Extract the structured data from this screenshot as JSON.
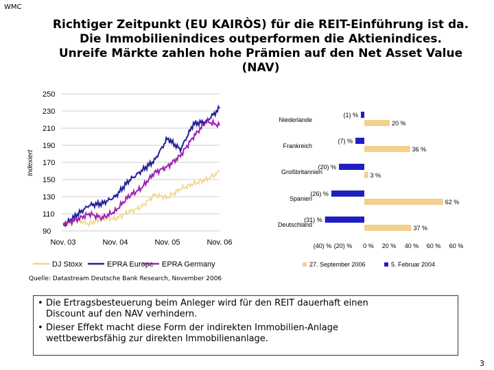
{
  "corner_label": "WMC",
  "title_lines": [
    "Richtiger Zeitpunkt (EU KAIRÒS) für die REIT-Einführung ist da.",
    "Die Immobilienindices outperformen die Aktienindices.",
    "Unreife Märkte zahlen hohe Prämien auf den Net Asset Value",
    "(NAV)"
  ],
  "source": "Quelle: Datastream Deutsche Bank Research, November 2006",
  "bullets": [
    [
      "Die Ertragsbesteuerung beim Anleger wird für den REIT dauerhaft einen",
      "Discount auf den NAV verhindern."
    ],
    [
      "Dieser Effekt macht diese Form der indirekten Immobilien-Anlage",
      "wettbewerbsfähig zur direkten Immobilienanlage."
    ]
  ],
  "page_number": "3",
  "colors": {
    "dj": "#f2d58a",
    "europe": "#1f1f9a",
    "germany": "#a020b0",
    "bar_sept": "#f5cf8c",
    "bar_feb": "#1f1fc0"
  },
  "chart_data": [
    {
      "type": "line",
      "ylabel": "Indexiert",
      "ylim": [
        90,
        250
      ],
      "yticks": [
        90,
        110,
        130,
        150,
        170,
        190,
        210,
        230,
        250
      ],
      "xticks": [
        "Nov. 03",
        "Nov. 04",
        "Nov. 05",
        "Nov. 06"
      ],
      "x": [
        0,
        0.25,
        0.5,
        0.75,
        1.0,
        1.25,
        1.5,
        1.75,
        2.0,
        2.25,
        2.5,
        2.75,
        3.0
      ],
      "series": [
        {
          "name": "DJ Stoxx",
          "values": [
            96,
            103,
            98,
            105,
            104,
            112,
            118,
            132,
            129,
            139,
            145,
            150,
            159
          ]
        },
        {
          "name": "EPRA Europe",
          "values": [
            96,
            108,
            120,
            122,
            130,
            148,
            160,
            172,
            198,
            185,
            215,
            218,
            233
          ]
        },
        {
          "name": "EPRA Germany",
          "values": [
            98,
            103,
            110,
            105,
            113,
            130,
            140,
            158,
            165,
            178,
            200,
            218,
            213
          ]
        }
      ]
    },
    {
      "type": "bar",
      "orientation": "horizontal",
      "categories": [
        "Niederlande",
        "Frankreich",
        "Großbritannien",
        "Spanien",
        "Deutschland"
      ],
      "series": [
        {
          "name": "27. September 2006",
          "values": [
            20,
            36,
            3,
            62,
            37
          ],
          "labels": [
            "20 %",
            "36 %",
            "3 %",
            "62 %",
            "37 %"
          ]
        },
        {
          "name": "5. Februar 2004",
          "values": [
            -1,
            -7,
            -20,
            -26,
            -31
          ],
          "labels": [
            "(1) %",
            "(7) %",
            "(20) %",
            "(26) %",
            "(31) %"
          ]
        }
      ],
      "xticks": [
        "(40) %",
        "(20) %",
        "0 %",
        "20 %",
        "40 %",
        "60 %",
        "60 %"
      ],
      "xlim": [
        -40,
        80
      ]
    }
  ]
}
